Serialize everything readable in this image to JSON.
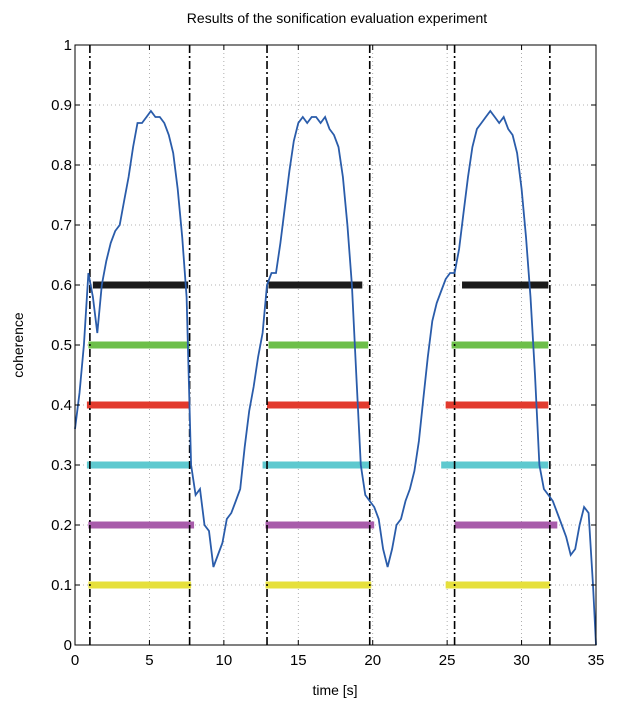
{
  "chart_data": {
    "type": "line",
    "title": "Results of the sonification evaluation experiment",
    "xlabel": "time [s]",
    "ylabel": "coherence",
    "xlim": [
      0,
      35
    ],
    "ylim": [
      0,
      1
    ],
    "xticks": [
      0,
      5,
      10,
      15,
      20,
      25,
      30,
      35
    ],
    "yticks": [
      0,
      0.1,
      0.2,
      0.3,
      0.4,
      0.5,
      0.6,
      0.7,
      0.8,
      0.9,
      1
    ],
    "xtick_labels": [
      "0",
      "5",
      "10",
      "15",
      "20",
      "25",
      "30",
      "35"
    ],
    "ytick_labels": [
      "0",
      "0.1",
      "0.2",
      "0.3",
      "0.4",
      "0.5",
      "0.6",
      "0.7",
      "0.8",
      "0.9",
      "1"
    ],
    "grid": true,
    "series": [
      {
        "color": "#2a5caa",
        "x": [
          0,
          0.3,
          0.6,
          0.9,
          1.2,
          1.5,
          1.8,
          2.1,
          2.4,
          2.7,
          3.0,
          3.3,
          3.6,
          3.9,
          4.2,
          4.5,
          4.8,
          5.1,
          5.4,
          5.7,
          6.0,
          6.3,
          6.6,
          6.9,
          7.2,
          7.5,
          7.8,
          8.1,
          8.4,
          8.7,
          9.0,
          9.3,
          9.6,
          9.9,
          10.2,
          10.5,
          10.8,
          11.1,
          11.4,
          11.7,
          12.0,
          12.3,
          12.6,
          12.9,
          13.2,
          13.5,
          13.8,
          14.1,
          14.4,
          14.7,
          15.0,
          15.3,
          15.6,
          15.9,
          16.2,
          16.5,
          16.8,
          17.1,
          17.4,
          17.7,
          18.0,
          18.3,
          18.6,
          18.9,
          19.2,
          19.5,
          19.8,
          20.1,
          20.4,
          20.7,
          21.0,
          21.3,
          21.6,
          21.9,
          22.2,
          22.5,
          22.8,
          23.1,
          23.4,
          23.7,
          24.0,
          24.3,
          24.6,
          24.9,
          25.2,
          25.5,
          25.8,
          26.1,
          26.4,
          26.7,
          27.0,
          27.3,
          27.6,
          27.9,
          28.2,
          28.5,
          28.8,
          29.1,
          29.4,
          29.7,
          30.0,
          30.3,
          30.6,
          30.9,
          31.2,
          31.5,
          31.8,
          32.1,
          32.4,
          32.7,
          33.0,
          33.3,
          33.6,
          33.9,
          34.2,
          34.5,
          34.8,
          35.0
        ],
        "y": [
          0.36,
          0.42,
          0.5,
          0.62,
          0.58,
          0.52,
          0.6,
          0.64,
          0.67,
          0.69,
          0.7,
          0.74,
          0.78,
          0.83,
          0.87,
          0.87,
          0.88,
          0.89,
          0.88,
          0.88,
          0.87,
          0.85,
          0.82,
          0.76,
          0.68,
          0.58,
          0.3,
          0.25,
          0.26,
          0.2,
          0.19,
          0.13,
          0.15,
          0.17,
          0.21,
          0.22,
          0.24,
          0.26,
          0.33,
          0.39,
          0.43,
          0.48,
          0.52,
          0.6,
          0.62,
          0.62,
          0.67,
          0.73,
          0.79,
          0.84,
          0.87,
          0.88,
          0.87,
          0.88,
          0.88,
          0.87,
          0.88,
          0.86,
          0.85,
          0.83,
          0.78,
          0.7,
          0.6,
          0.45,
          0.3,
          0.25,
          0.24,
          0.23,
          0.21,
          0.16,
          0.13,
          0.16,
          0.2,
          0.21,
          0.24,
          0.26,
          0.29,
          0.34,
          0.41,
          0.48,
          0.54,
          0.57,
          0.59,
          0.61,
          0.62,
          0.62,
          0.66,
          0.72,
          0.78,
          0.83,
          0.86,
          0.87,
          0.88,
          0.89,
          0.88,
          0.87,
          0.88,
          0.86,
          0.85,
          0.82,
          0.76,
          0.68,
          0.58,
          0.45,
          0.3,
          0.26,
          0.25,
          0.24,
          0.22,
          0.2,
          0.18,
          0.15,
          0.16,
          0.2,
          0.23,
          0.22,
          0.1,
          0.0
        ]
      }
    ],
    "reference_lines": {
      "x": [
        1.0,
        7.7,
        12.9,
        19.8,
        25.5,
        31.9
      ],
      "style": "dash-dot",
      "color": "#000000"
    },
    "bars": [
      {
        "y": 0.6,
        "color": "#1a1a1a",
        "segments": [
          [
            1.2,
            7.6
          ],
          [
            13.0,
            19.3
          ],
          [
            26.0,
            31.8
          ]
        ]
      },
      {
        "y": 0.5,
        "color": "#6dbf4a",
        "segments": [
          [
            0.9,
            7.7
          ],
          [
            13.0,
            19.7
          ],
          [
            25.3,
            31.8
          ]
        ]
      },
      {
        "y": 0.4,
        "color": "#e23a2d",
        "segments": [
          [
            0.8,
            7.7
          ],
          [
            12.9,
            19.8
          ],
          [
            24.9,
            31.8
          ]
        ]
      },
      {
        "y": 0.3,
        "color": "#5ec9cf",
        "segments": [
          [
            0.8,
            7.8
          ],
          [
            12.6,
            19.8
          ],
          [
            24.6,
            31.8
          ]
        ]
      },
      {
        "y": 0.2,
        "color": "#a85caa",
        "segments": [
          [
            0.9,
            8.0
          ],
          [
            12.8,
            20.1
          ],
          [
            25.5,
            32.4
          ]
        ]
      },
      {
        "y": 0.1,
        "color": "#e6e03c",
        "segments": [
          [
            0.9,
            7.8
          ],
          [
            12.8,
            19.9
          ],
          [
            24.9,
            31.9
          ]
        ]
      }
    ]
  }
}
